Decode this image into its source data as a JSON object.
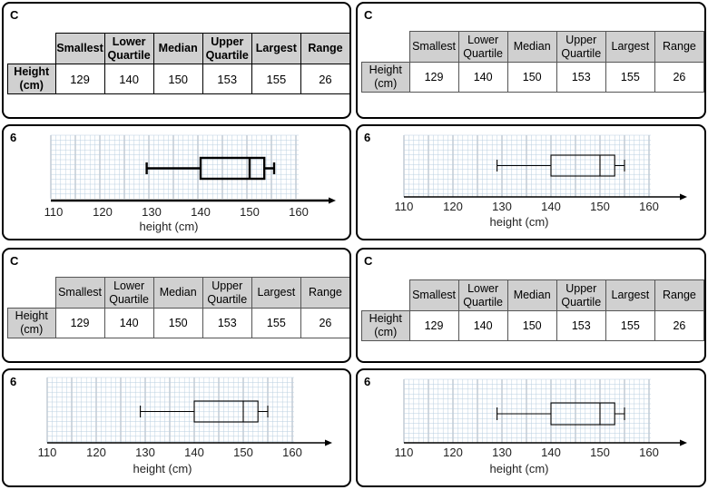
{
  "table_label": "C",
  "plot_label": "6",
  "table": {
    "headers": [
      "Smallest",
      "Lower Quartile",
      "Median",
      "Upper Quartile",
      "Largest",
      "Range"
    ],
    "row_label": "Height (cm)",
    "values": [
      "129",
      "140",
      "150",
      "153",
      "155",
      "26"
    ]
  },
  "chart_data": {
    "type": "boxplot",
    "xlabel": "height (cm)",
    "x_ticks": [
      110,
      120,
      130,
      140,
      150,
      160
    ],
    "xlim": [
      110,
      165
    ],
    "min": 129,
    "q1": 140,
    "median": 150,
    "q3": 153,
    "max": 155,
    "grid": true,
    "colors": {
      "grid": "#b9cfe0",
      "grid_major": "#9aa9b8",
      "box": "#000000"
    }
  }
}
